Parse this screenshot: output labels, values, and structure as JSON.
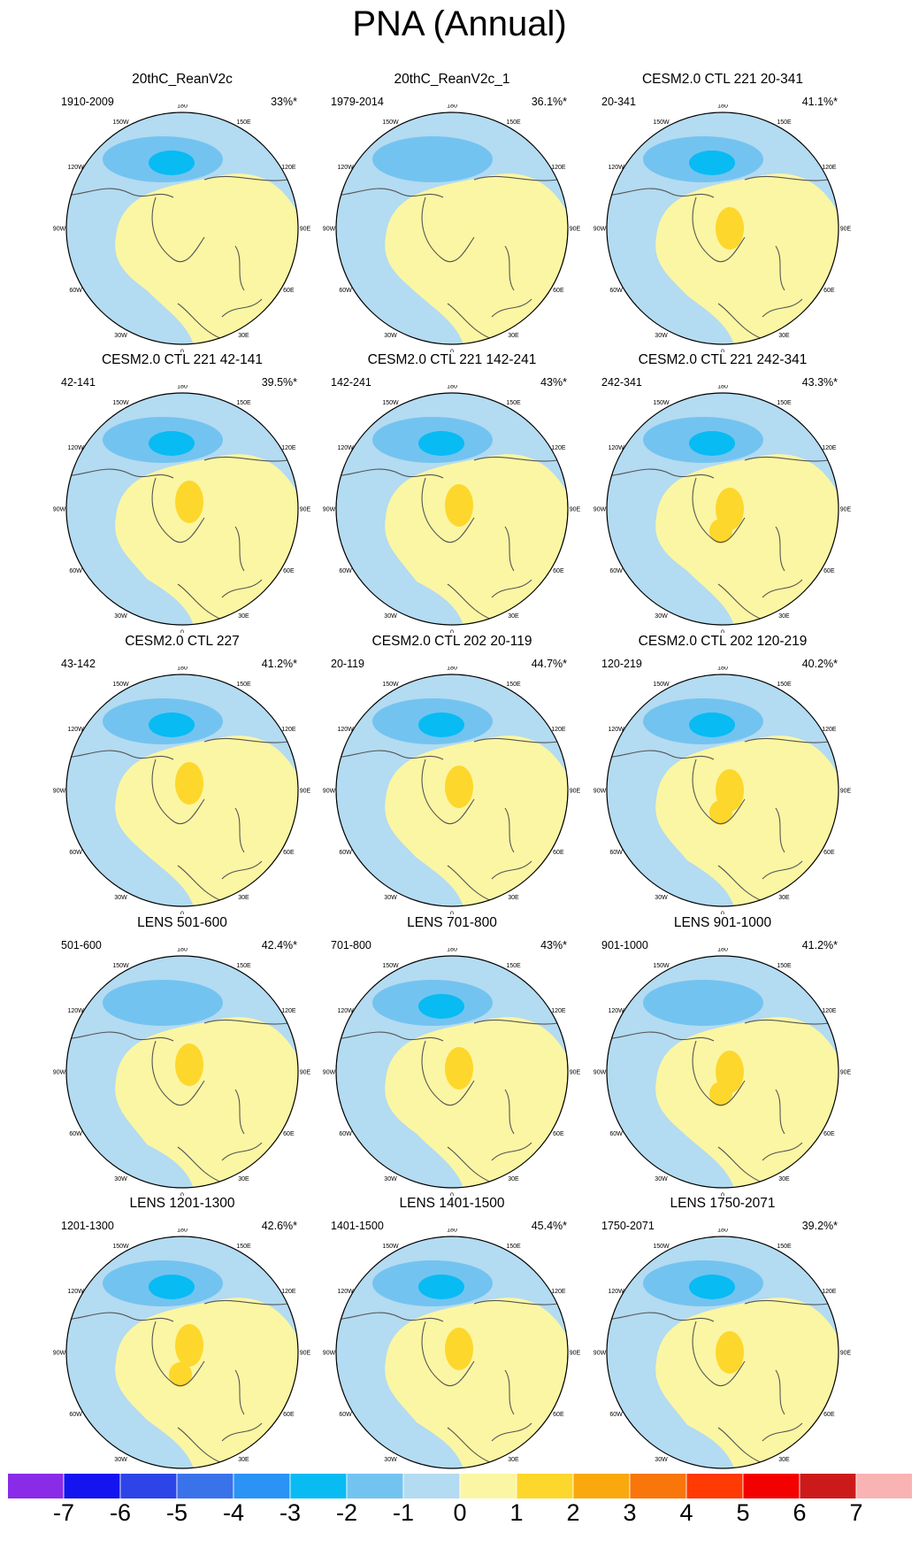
{
  "title": "PNA (Annual)",
  "colors": {
    "ocean_neg": "#b3dbf1",
    "bin_m2": "#73c3f0",
    "bin_m3": "#08bbf3",
    "pos_light": "#fbf6a3",
    "pos_mid": "#fdd72c",
    "coast": "#555555"
  },
  "chart_data": {
    "type": "heatmap",
    "projection": "north polar stereographic",
    "longitude_labels": [
      "180",
      "150E",
      "120E",
      "90E",
      "60E",
      "30E",
      "0",
      "30W",
      "60W",
      "90W",
      "120W",
      "150W"
    ],
    "panels": [
      {
        "title": "20thC_ReanV2c",
        "period": "1910-2009",
        "pct": "33%*"
      },
      {
        "title": "20thC_ReanV2c_1",
        "period": "1979-2014",
        "pct": "36.1%*"
      },
      {
        "title": "CESM2.0 CTL 221 20-341",
        "period": "20-341",
        "pct": "41.1%*"
      },
      {
        "title": "CESM2.0 CTL 221 42-141",
        "period": "42-141",
        "pct": "39.5%*"
      },
      {
        "title": "CESM2.0 CTL 221 142-241",
        "period": "142-241",
        "pct": "43%*"
      },
      {
        "title": "CESM2.0 CTL 221 242-341",
        "period": "242-341",
        "pct": "43.3%*"
      },
      {
        "title": "CESM2.0 CTL 227",
        "period": "43-142",
        "pct": "41.2%*"
      },
      {
        "title": "CESM2.0 CTL 202 20-119",
        "period": "20-119",
        "pct": "44.7%*"
      },
      {
        "title": "CESM2.0 CTL 202 120-219",
        "period": "120-219",
        "pct": "40.2%*"
      },
      {
        "title": "LENS 501-600",
        "period": "501-600",
        "pct": "42.4%*"
      },
      {
        "title": "LENS 701-800",
        "period": "701-800",
        "pct": "43%*"
      },
      {
        "title": "LENS 901-1000",
        "period": "901-1000",
        "pct": "41.2%*"
      },
      {
        "title": "LENS 1201-1300",
        "period": "1201-1300",
        "pct": "42.6%*"
      },
      {
        "title": "LENS 1401-1500",
        "period": "1401-1500",
        "pct": "45.4%*"
      },
      {
        "title": "LENS 1750-2071",
        "period": "1750-2071",
        "pct": "39.2%*"
      }
    ],
    "colorbar": {
      "colors": [
        "#8a2be8",
        "#1414f0",
        "#2c44e8",
        "#3a72ea",
        "#2a93f5",
        "#08bbf3",
        "#73c3f0",
        "#b3dbf1",
        "#fbf6a3",
        "#fdd72c",
        "#f9a90d",
        "#f9760a",
        "#ff3a05",
        "#f30000",
        "#cc1a1a",
        "#f9b3b3"
      ],
      "labels": [
        "-7",
        "-6",
        "-5",
        "-4",
        "-3",
        "-2",
        "-1",
        "0",
        "1",
        "2",
        "3",
        "4",
        "5",
        "6",
        "7"
      ]
    }
  }
}
